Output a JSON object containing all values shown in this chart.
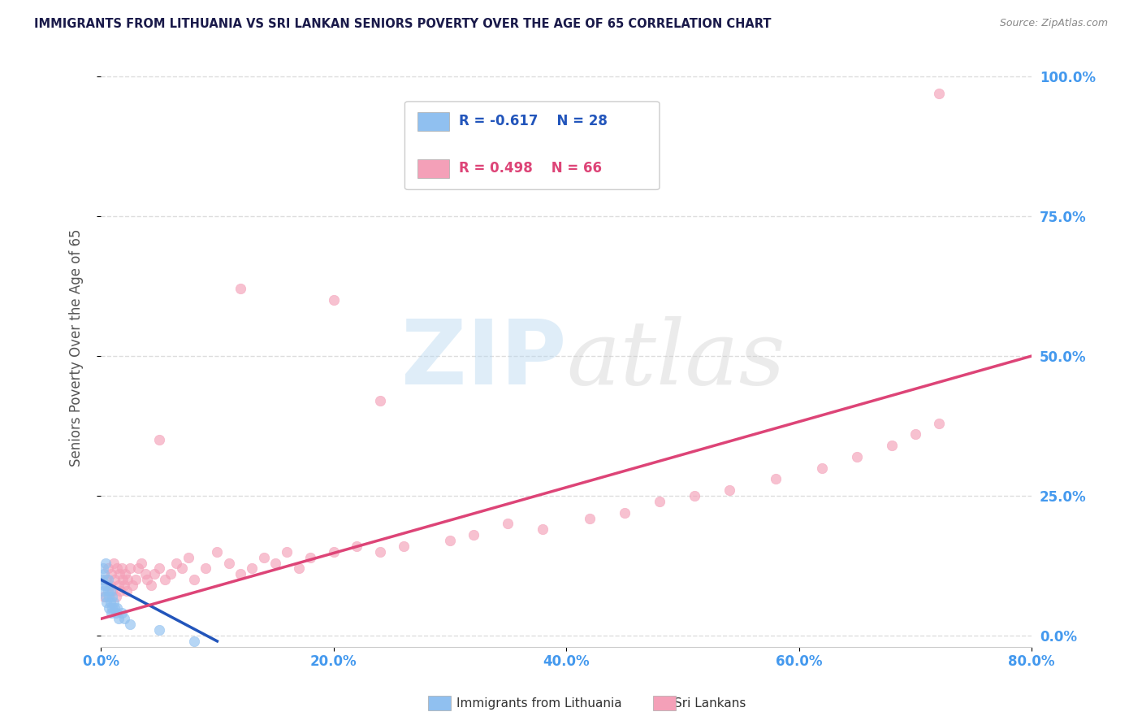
{
  "title": "IMMIGRANTS FROM LITHUANIA VS SRI LANKAN SENIORS POVERTY OVER THE AGE OF 65 CORRELATION CHART",
  "source": "Source: ZipAtlas.com",
  "ylabel": "Seniors Poverty Over the Age of 65",
  "xlabel_ticks": [
    "0.0%",
    "20.0%",
    "40.0%",
    "60.0%",
    "80.0%"
  ],
  "ylabel_ticks": [
    "0.0%",
    "25.0%",
    "50.0%",
    "75.0%",
    "100.0%"
  ],
  "xlim": [
    0.0,
    0.8
  ],
  "ylim": [
    -0.02,
    1.05
  ],
  "legend_labels": [
    "Immigrants from Lithuania",
    "Sri Lankans"
  ],
  "legend_R_N": [
    {
      "R": "-0.617",
      "N": "28",
      "color": "#a8c8f8"
    },
    {
      "R": "0.498",
      "N": "66",
      "color": "#f9a8c0"
    }
  ],
  "watermark_zip": "ZIP",
  "watermark_atlas": "atlas",
  "background_color": "#ffffff",
  "grid_color": "#dddddd",
  "grid_style": "--",
  "lithuania_scatter_x": [
    0.001,
    0.002,
    0.002,
    0.003,
    0.003,
    0.004,
    0.004,
    0.005,
    0.005,
    0.006,
    0.006,
    0.007,
    0.007,
    0.008,
    0.008,
    0.009,
    0.01,
    0.01,
    0.011,
    0.012,
    0.013,
    0.014,
    0.015,
    0.018,
    0.02,
    0.025,
    0.05,
    0.08
  ],
  "lithuania_scatter_y": [
    0.1,
    0.08,
    0.12,
    0.09,
    0.11,
    0.07,
    0.13,
    0.06,
    0.09,
    0.08,
    0.1,
    0.07,
    0.05,
    0.08,
    0.06,
    0.04,
    0.05,
    0.07,
    0.06,
    0.05,
    0.04,
    0.05,
    0.03,
    0.04,
    0.03,
    0.02,
    0.01,
    -0.01
  ],
  "lithuania_trend_x": [
    0.0,
    0.1
  ],
  "lithuania_trend_y": [
    0.1,
    -0.01
  ],
  "srilanka_scatter_x": [
    0.003,
    0.005,
    0.006,
    0.008,
    0.009,
    0.01,
    0.011,
    0.012,
    0.013,
    0.014,
    0.015,
    0.016,
    0.017,
    0.018,
    0.019,
    0.02,
    0.021,
    0.022,
    0.023,
    0.025,
    0.027,
    0.03,
    0.032,
    0.035,
    0.038,
    0.04,
    0.043,
    0.046,
    0.05,
    0.055,
    0.06,
    0.065,
    0.07,
    0.075,
    0.08,
    0.09,
    0.1,
    0.11,
    0.12,
    0.13,
    0.14,
    0.15,
    0.16,
    0.17,
    0.18,
    0.2,
    0.22,
    0.24,
    0.26,
    0.3,
    0.32,
    0.35,
    0.38,
    0.42,
    0.45,
    0.48,
    0.51,
    0.54,
    0.58,
    0.62,
    0.65,
    0.68,
    0.7,
    0.72,
    0.05,
    0.12
  ],
  "srilanka_scatter_y": [
    0.07,
    0.1,
    0.12,
    0.09,
    0.11,
    0.08,
    0.13,
    0.1,
    0.07,
    0.12,
    0.09,
    0.11,
    0.08,
    0.12,
    0.1,
    0.09,
    0.11,
    0.08,
    0.1,
    0.12,
    0.09,
    0.1,
    0.12,
    0.13,
    0.11,
    0.1,
    0.09,
    0.11,
    0.12,
    0.1,
    0.11,
    0.13,
    0.12,
    0.14,
    0.1,
    0.12,
    0.15,
    0.13,
    0.11,
    0.12,
    0.14,
    0.13,
    0.15,
    0.12,
    0.14,
    0.15,
    0.16,
    0.15,
    0.16,
    0.17,
    0.18,
    0.2,
    0.19,
    0.21,
    0.22,
    0.24,
    0.25,
    0.26,
    0.28,
    0.3,
    0.32,
    0.34,
    0.36,
    0.38,
    0.35,
    0.62
  ],
  "srilanka_outlier_x": [
    0.72
  ],
  "srilanka_outlier_y": [
    0.97
  ],
  "srilanka_high1_x": [
    0.2
  ],
  "srilanka_high1_y": [
    0.6
  ],
  "srilanka_high2_x": [
    0.24
  ],
  "srilanka_high2_y": [
    0.42
  ],
  "srilanka_trend_x": [
    0.0,
    0.8
  ],
  "srilanka_trend_y": [
    0.03,
    0.5
  ],
  "scatter_size": 80,
  "scatter_alpha": 0.65,
  "lithuania_color": "#90c0f0",
  "srilanka_color": "#f4a0b8",
  "lithuania_trend_color": "#2255bb",
  "srilanka_trend_color": "#dd4477",
  "title_color": "#1a1a4a",
  "source_color": "#888888",
  "axis_label_color": "#555555",
  "tick_label_color": "#4499ee"
}
